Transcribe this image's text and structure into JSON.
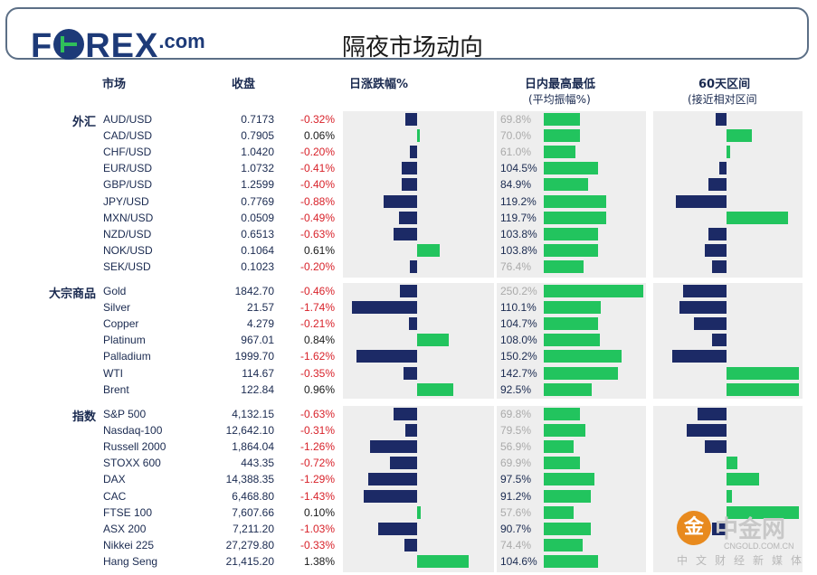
{
  "header": {
    "logo_text": "FOREX",
    "logo_domain": ".com",
    "title": "隔夜市场动向"
  },
  "columns": {
    "market": "市场",
    "close": "收盘",
    "daily_change": "日涨跌幅%",
    "intraday_range": "日内最高最低",
    "intraday_range_sub": "(平均振幅%)",
    "sixty_day": "60天区间",
    "sixty_day_sub": "(接近相对区间"
  },
  "groups": [
    {
      "label": "外汇",
      "rows": [
        {
          "name": "AUD/USD",
          "close": "0.7173",
          "change": "-0.32%",
          "range": "69.8%"
        },
        {
          "name": "CAD/USD",
          "close": "0.7905",
          "change": "0.06%",
          "range": "70.0%"
        },
        {
          "name": "CHF/USD",
          "close": "1.0420",
          "change": "-0.20%",
          "range": "61.0%"
        },
        {
          "name": "EUR/USD",
          "close": "1.0732",
          "change": "-0.41%",
          "range": "104.5%"
        },
        {
          "name": "GBP/USD",
          "close": "1.2599",
          "change": "-0.40%",
          "range": "84.9%"
        },
        {
          "name": "JPY/USD",
          "close": "0.7769",
          "change": "-0.88%",
          "range": "119.2%"
        },
        {
          "name": "MXN/USD",
          "close": "0.0509",
          "change": "-0.49%",
          "range": "119.7%"
        },
        {
          "name": "NZD/USD",
          "close": "0.6513",
          "change": "-0.63%",
          "range": "103.8%"
        },
        {
          "name": "NOK/USD",
          "close": "0.1064",
          "change": "0.61%",
          "range": "103.8%"
        },
        {
          "name": "SEK/USD",
          "close": "0.1023",
          "change": "-0.20%",
          "range": "76.4%"
        }
      ]
    },
    {
      "label": "大宗商品",
      "rows": [
        {
          "name": "Gold",
          "close": "1842.70",
          "change": "-0.46%",
          "range": "250.2%"
        },
        {
          "name": "Silver",
          "close": "21.57",
          "change": "-1.74%",
          "range": "110.1%"
        },
        {
          "name": "Copper",
          "close": "4.279",
          "change": "-0.21%",
          "range": "104.7%"
        },
        {
          "name": "Platinum",
          "close": "967.01",
          "change": "0.84%",
          "range": "108.0%"
        },
        {
          "name": "Palladium",
          "close": "1999.70",
          "change": "-1.62%",
          "range": "150.2%"
        },
        {
          "name": "WTI",
          "close": "114.67",
          "change": "-0.35%",
          "range": "142.7%"
        },
        {
          "name": "Brent",
          "close": "122.84",
          "change": "0.96%",
          "range": "92.5%"
        }
      ]
    },
    {
      "label": "指数",
      "rows": [
        {
          "name": "S&P 500",
          "close": "4,132.15",
          "change": "-0.63%",
          "range": "69.8%"
        },
        {
          "name": "Nasdaq-100",
          "close": "12,642.10",
          "change": "-0.31%",
          "range": "79.5%"
        },
        {
          "name": "Russell 2000",
          "close": "1,864.04",
          "change": "-1.26%",
          "range": "56.9%"
        },
        {
          "name": "STOXX 600",
          "close": "443.35",
          "change": "-0.72%",
          "range": "69.9%"
        },
        {
          "name": "DAX",
          "close": "14,388.35",
          "change": "-1.29%",
          "range": "97.5%"
        },
        {
          "name": "CAC",
          "close": "6,468.80",
          "change": "-1.43%",
          "range": "91.2%"
        },
        {
          "name": "FTSE 100",
          "close": "7,607.66",
          "change": "0.10%",
          "range": "57.6%"
        },
        {
          "name": "ASX 200",
          "close": "7,211.20",
          "change": "-1.03%",
          "range": "90.7%"
        },
        {
          "name": "Nikkei 225",
          "close": "27,279.80",
          "change": "-0.33%",
          "range": "74.4%"
        },
        {
          "name": "Hang Seng",
          "close": "21,415.20",
          "change": "1.38%",
          "range": "104.6%"
        }
      ]
    }
  ],
  "chart_data": {
    "type": "bar",
    "daily_change_pct": [
      -0.32,
      0.06,
      -0.2,
      -0.41,
      -0.4,
      -0.88,
      -0.49,
      -0.63,
      0.61,
      -0.2,
      -0.46,
      -1.74,
      -0.21,
      0.84,
      -1.62,
      -0.35,
      0.96,
      -0.63,
      -0.31,
      -1.26,
      -0.72,
      -1.29,
      -1.43,
      0.1,
      -1.03,
      -0.33,
      1.38
    ],
    "intraday_range_pct": [
      69.8,
      70.0,
      61.0,
      104.5,
      84.9,
      119.2,
      119.7,
      103.8,
      103.8,
      76.4,
      250.2,
      110.1,
      104.7,
      108.0,
      150.2,
      142.7,
      92.5,
      69.8,
      79.5,
      56.9,
      69.9,
      97.5,
      91.2,
      57.6,
      90.7,
      74.4,
      104.6
    ],
    "sixty_day_relative": [
      -0.15,
      0.35,
      0.05,
      -0.1,
      -0.25,
      -0.7,
      0.85,
      -0.25,
      -0.3,
      -0.2,
      -0.6,
      -0.65,
      -0.45,
      -0.2,
      -0.75,
      1.0,
      1.0,
      -0.4,
      -0.55,
      -0.3,
      0.15,
      0.45,
      0.08,
      1.0,
      -0.2,
      0.0,
      0.0
    ]
  },
  "watermark": {
    "glyph": "金",
    "name": "中金网",
    "url": "CNGOLD.COM.CN",
    "tagline": "中文财经新媒体"
  },
  "colors": {
    "navy": "#1c2a66",
    "green": "#22c45e",
    "negative_text": "#d8222a",
    "panel": "#eeeeee"
  }
}
